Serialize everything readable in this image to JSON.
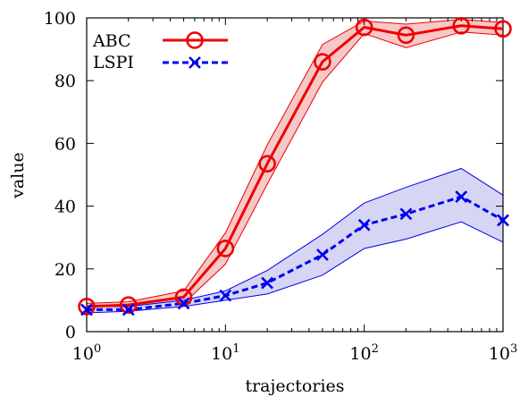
{
  "chart_data": {
    "type": "line",
    "xlabel": "trajectories",
    "ylabel": "value",
    "xscale": "log",
    "xlim": [
      1,
      1000
    ],
    "ylim": [
      0,
      100
    ],
    "grid": false,
    "legend_position": "top-left",
    "x_tick_labels": [
      {
        "value": 1,
        "base": "10",
        "exp": "0"
      },
      {
        "value": 10,
        "base": "10",
        "exp": "1"
      },
      {
        "value": 100,
        "base": "10",
        "exp": "2"
      },
      {
        "value": 1000,
        "base": "10",
        "exp": "3"
      }
    ],
    "y_ticks": [
      0,
      20,
      40,
      60,
      80,
      100
    ],
    "y_tick_labels": [
      "0",
      "20",
      "40",
      "60",
      "80",
      "100"
    ],
    "x": [
      1,
      2,
      5,
      10,
      20,
      50,
      100,
      200,
      500,
      1000
    ],
    "series": [
      {
        "name": "ABC",
        "color": "#ee0000",
        "fill_color": "#f6c8c8",
        "line_style": "solid",
        "marker": "circle",
        "values": [
          8,
          8.5,
          11,
          26.5,
          53.5,
          86,
          97,
          94.5,
          97.5,
          96.5
        ],
        "lower": [
          7,
          7.5,
          9,
          21.5,
          47,
          79.5,
          95,
          90.5,
          95.5,
          94.5
        ],
        "upper": [
          9,
          9.5,
          13,
          31.5,
          59.5,
          91.5,
          99,
          98,
          99.5,
          98.5
        ]
      },
      {
        "name": "LSPI",
        "color": "#0000ee",
        "fill_color": "#d6d6f4",
        "line_style": "dashed",
        "marker": "x",
        "values": [
          7,
          7,
          9,
          11.5,
          15.5,
          24.5,
          34,
          37.5,
          43,
          35.5
        ],
        "lower": [
          6,
          6.5,
          8,
          10,
          12,
          18,
          26.5,
          29.5,
          35,
          28.5
        ],
        "upper": [
          8,
          8,
          10,
          13,
          19.5,
          31,
          41,
          46,
          52,
          43.5
        ]
      }
    ]
  }
}
